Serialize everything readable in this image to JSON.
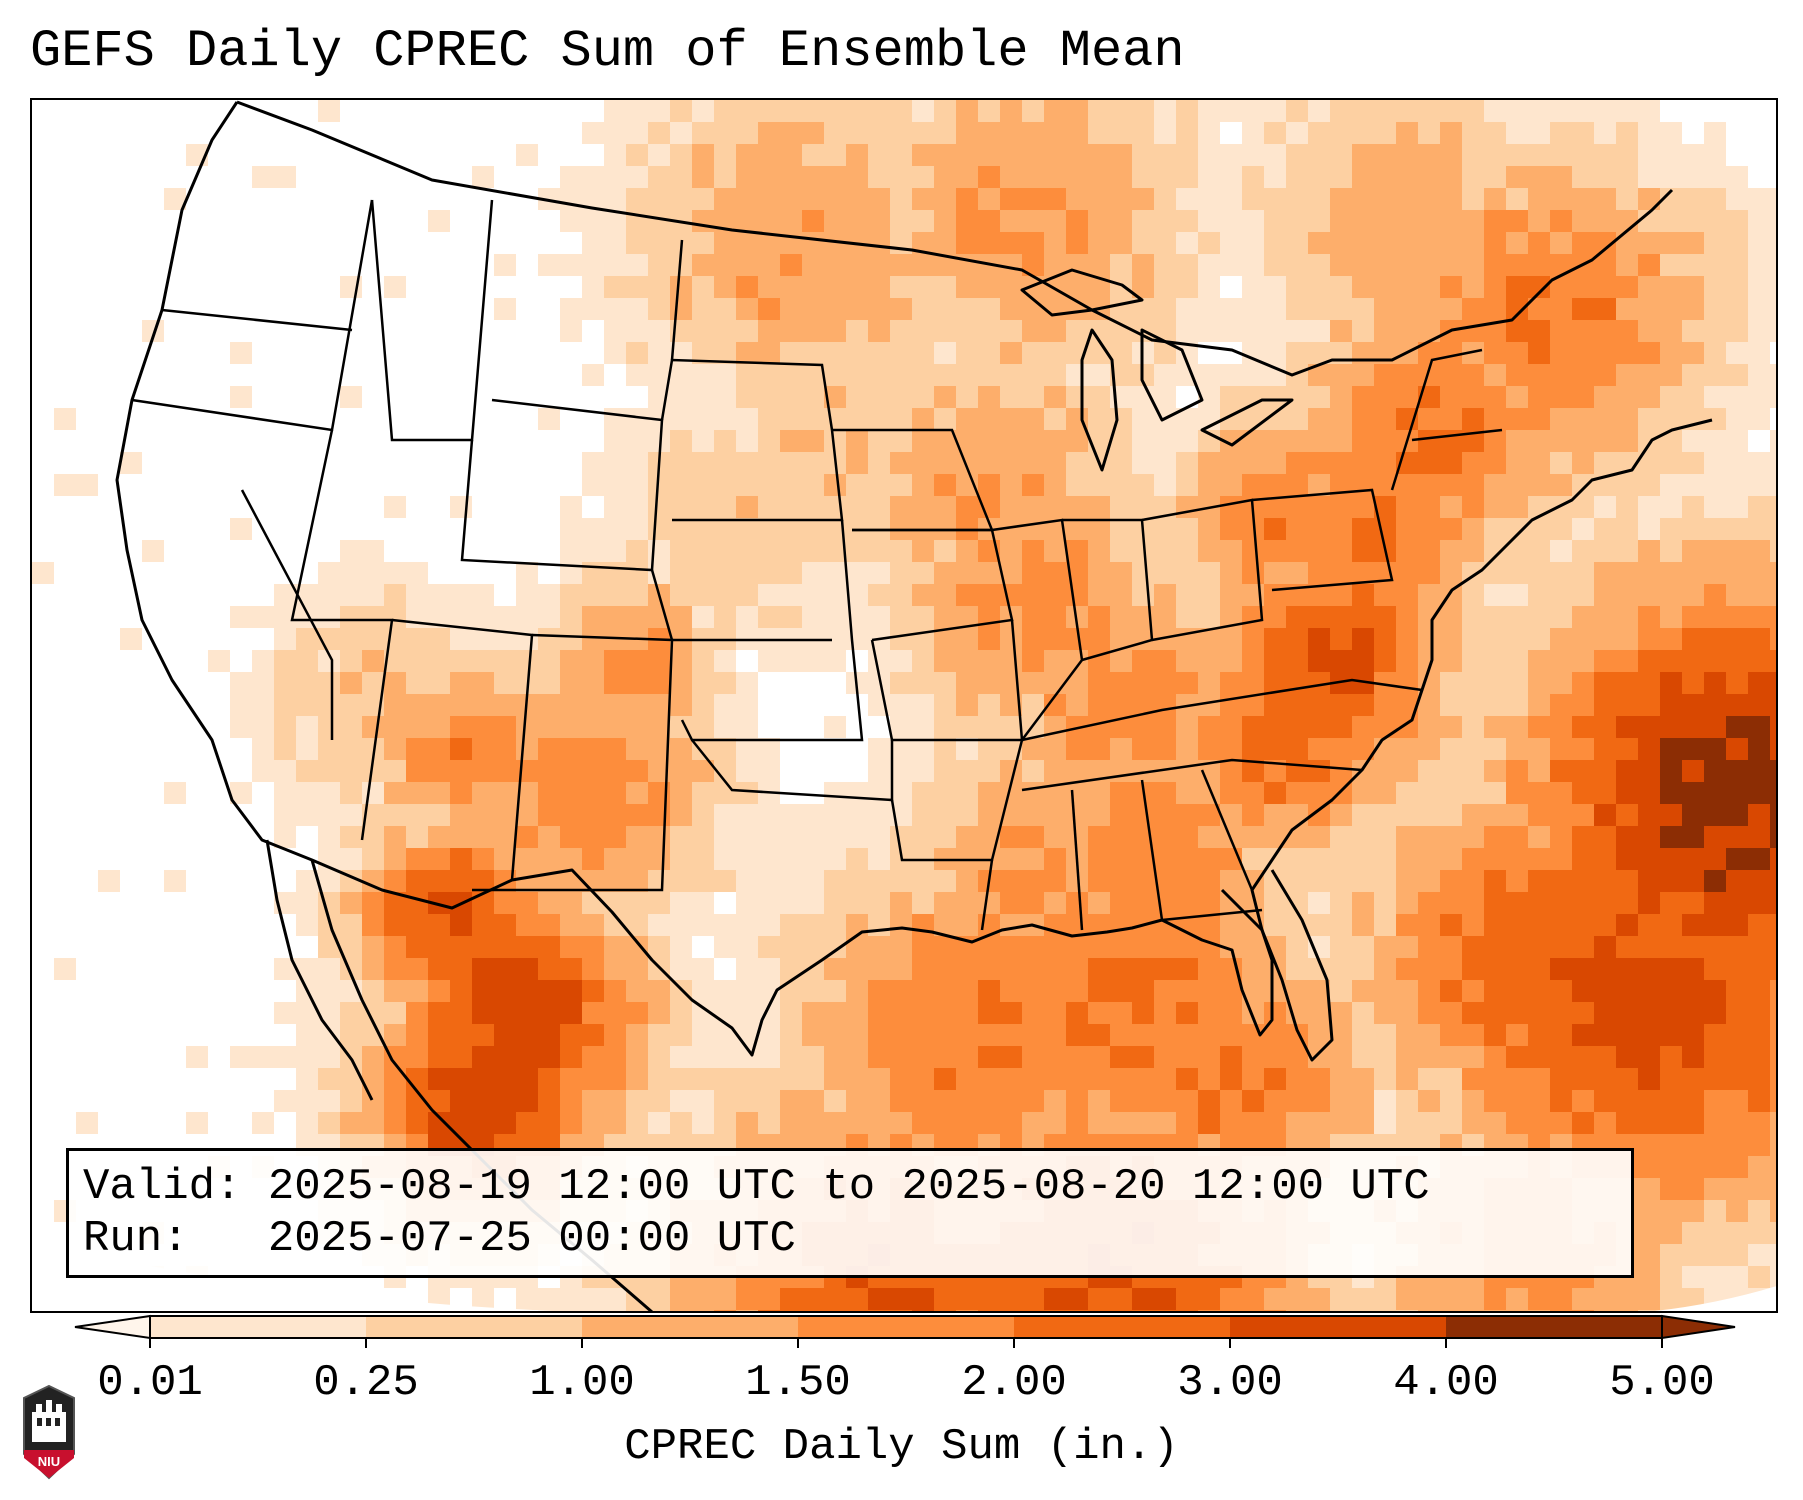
{
  "title": "GEFS Daily CPREC Sum of Ensemble Mean",
  "info": {
    "valid_label": "Valid:",
    "valid_value": "2025-08-19 12:00 UTC to 2025-08-20 12:00 UTC",
    "run_label": "Run:",
    "run_value": "2025-07-25 00:00 UTC"
  },
  "colorbar": {
    "label": "CPREC Daily Sum (in.)",
    "ticks": [
      "0.01",
      "0.25",
      "1.00",
      "1.50",
      "2.00",
      "3.00",
      "4.00",
      "5.00"
    ],
    "colors": [
      "#fff5eb",
      "#fee6ce",
      "#fdd0a2",
      "#fdae6b",
      "#fd8d3c",
      "#f16913",
      "#d94801",
      "#8c2d04"
    ],
    "extend": "both"
  },
  "logo": {
    "text": "NIU",
    "name": "niu-logo"
  },
  "map": {
    "icons": [
      "state-boundaries",
      "coastlines",
      "country-borders"
    ]
  }
}
